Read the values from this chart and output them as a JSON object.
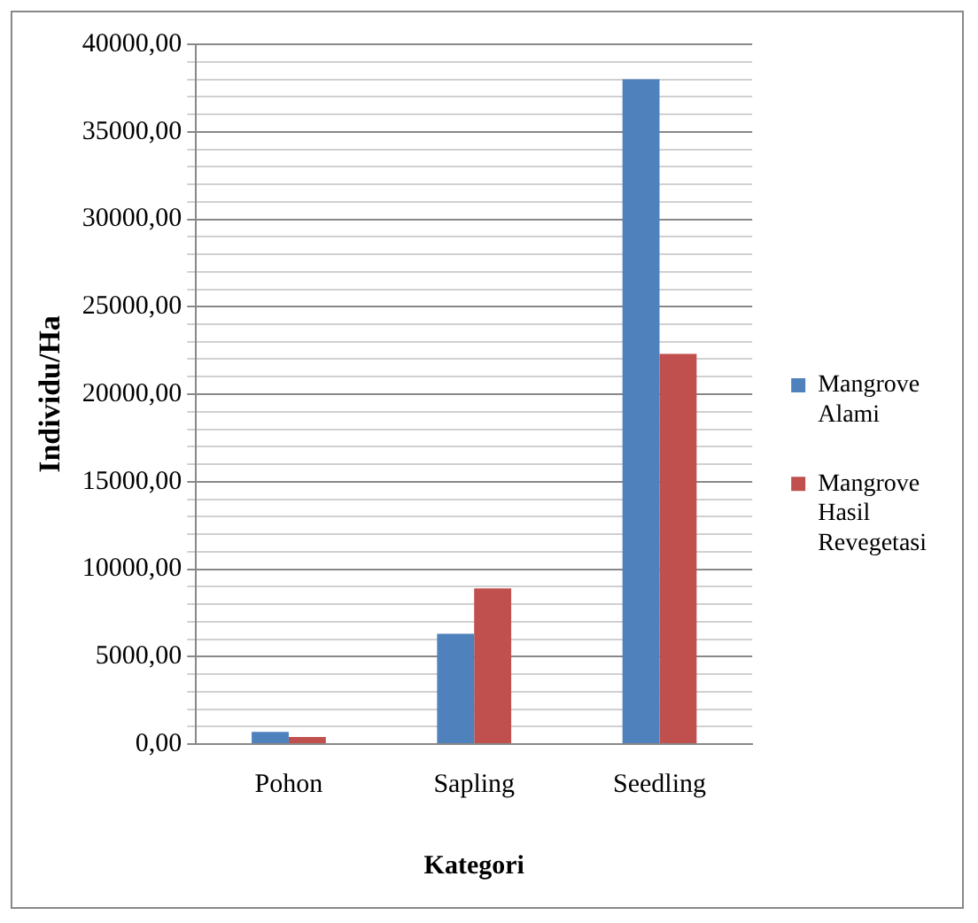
{
  "chart_data": {
    "type": "bar",
    "xlabel": "Kategori",
    "ylabel": "Individu/Ha",
    "categories": [
      "Pohon",
      "Sapling",
      "Seedling"
    ],
    "series": [
      {
        "name": "Mangrove Alami",
        "color": "#4f81bd",
        "values": [
          700,
          6300,
          38000
        ]
      },
      {
        "name": "Mangrove Hasil Revegetasi",
        "color": "#c0504d",
        "values": [
          400,
          8900,
          22300
        ]
      }
    ],
    "ylim": [
      0,
      40000
    ],
    "yticks": [
      {
        "value": 0,
        "label": "0,00"
      },
      {
        "value": 1000,
        "label": null
      },
      {
        "value": 2000,
        "label": null
      },
      {
        "value": 3000,
        "label": null
      },
      {
        "value": 4000,
        "label": null
      },
      {
        "value": 5000,
        "label": "5000,00"
      },
      {
        "value": 6000,
        "label": null
      },
      {
        "value": 7000,
        "label": null
      },
      {
        "value": 8000,
        "label": null
      },
      {
        "value": 9000,
        "label": null
      },
      {
        "value": 10000,
        "label": "10000,00"
      },
      {
        "value": 11000,
        "label": null
      },
      {
        "value": 12000,
        "label": null
      },
      {
        "value": 13000,
        "label": null
      },
      {
        "value": 14000,
        "label": null
      },
      {
        "value": 15000,
        "label": "15000,00"
      },
      {
        "value": 16000,
        "label": null
      },
      {
        "value": 17000,
        "label": null
      },
      {
        "value": 18000,
        "label": null
      },
      {
        "value": 19000,
        "label": null
      },
      {
        "value": 20000,
        "label": "20000,00"
      },
      {
        "value": 21000,
        "label": null
      },
      {
        "value": 22000,
        "label": null
      },
      {
        "value": 23000,
        "label": null
      },
      {
        "value": 24000,
        "label": null
      },
      {
        "value": 25000,
        "label": "25000,00"
      },
      {
        "value": 26000,
        "label": null
      },
      {
        "value": 27000,
        "label": null
      },
      {
        "value": 28000,
        "label": null
      },
      {
        "value": 29000,
        "label": null
      },
      {
        "value": 30000,
        "label": "30000,00"
      },
      {
        "value": 31000,
        "label": null
      },
      {
        "value": 32000,
        "label": null
      },
      {
        "value": 33000,
        "label": null
      },
      {
        "value": 34000,
        "label": null
      },
      {
        "value": 35000,
        "label": "35000,00"
      },
      {
        "value": 36000,
        "label": null
      },
      {
        "value": 37000,
        "label": null
      },
      {
        "value": 38000,
        "label": null
      },
      {
        "value": 39000,
        "label": null
      },
      {
        "value": 40000,
        "label": "40000,00"
      }
    ],
    "grid": "y",
    "legend": "right"
  }
}
